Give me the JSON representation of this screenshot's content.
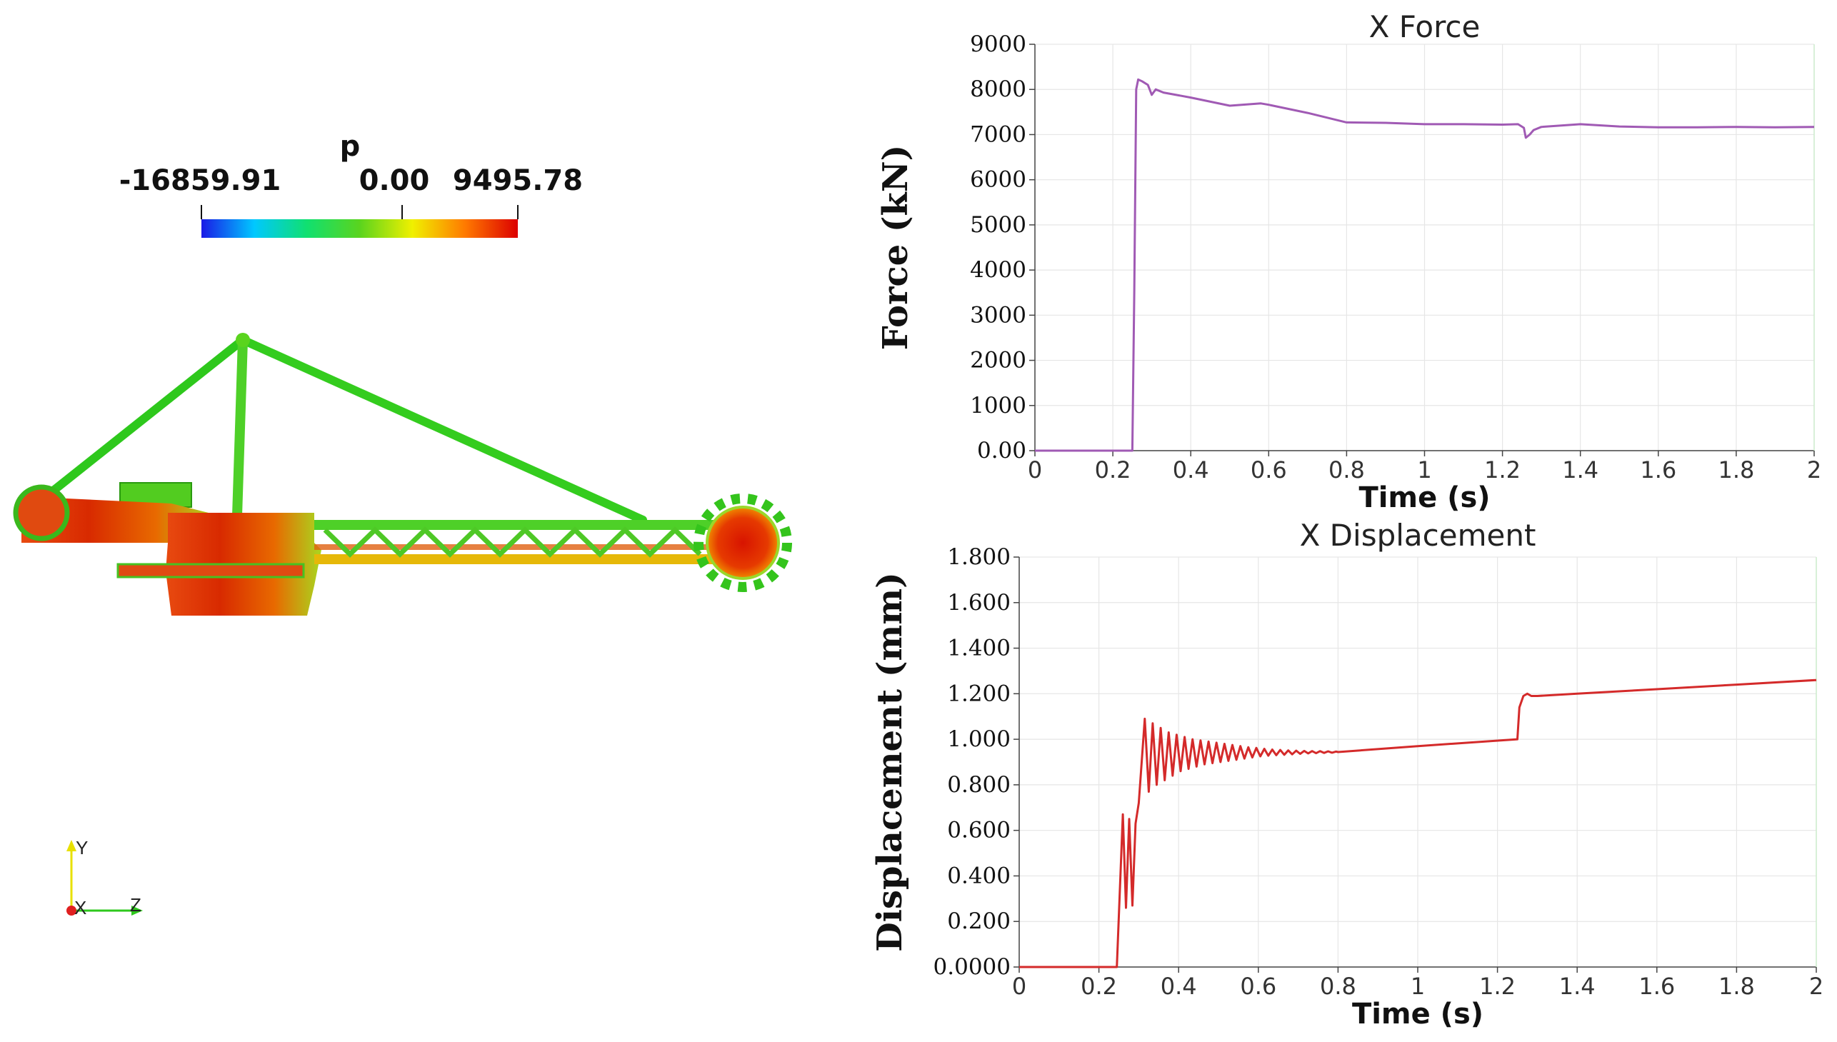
{
  "model_view": {
    "colorbar": {
      "title": "p",
      "min_label": "-16859.91",
      "mid_label": "0.00",
      "max_label": "9495.78",
      "colors": [
        "#1a1ae6",
        "#00c8ff",
        "#10e070",
        "#5ad41e",
        "#f0f000",
        "#ff7a00",
        "#dc0000"
      ]
    },
    "axes": {
      "y": "Y",
      "x": "X",
      "z": "Z"
    }
  },
  "chart_data": [
    {
      "type": "line",
      "title": "X Force",
      "xlabel": "Time (s)",
      "ylabel": "Force (kN)",
      "xlim": [
        0,
        2
      ],
      "ylim": [
        0,
        9000
      ],
      "x_ticks": [
        "0",
        "0.2",
        "0.4",
        "0.6",
        "0.8",
        "1",
        "1.2",
        "1.4",
        "1.6",
        "1.8",
        "2"
      ],
      "y_ticks": [
        "0.00",
        "1000",
        "2000",
        "3000",
        "4000",
        "5000",
        "6000",
        "7000",
        "8000",
        "9000"
      ],
      "y_tick_values": [
        0,
        1000,
        2000,
        3000,
        4000,
        5000,
        6000,
        7000,
        8000,
        9000
      ],
      "color": "#a05ab4",
      "series": [
        {
          "x": [
            0,
            0.245,
            0.25,
            0.255,
            0.26,
            0.265,
            0.275,
            0.29,
            0.3,
            0.31,
            0.33,
            0.4,
            0.5,
            0.58,
            0.6,
            0.7,
            0.8,
            0.9,
            1.0,
            1.1,
            1.2,
            1.24,
            1.255,
            1.26,
            1.27,
            1.28,
            1.3,
            1.4,
            1.5,
            1.6,
            1.7,
            1.8,
            1.9,
            2.0
          ],
          "y": [
            0,
            0,
            0,
            3500,
            8000,
            8220,
            8180,
            8100,
            7880,
            8000,
            7930,
            7820,
            7640,
            7690,
            7660,
            7480,
            7270,
            7260,
            7230,
            7230,
            7220,
            7230,
            7150,
            6930,
            7000,
            7100,
            7170,
            7230,
            7180,
            7160,
            7160,
            7170,
            7160,
            7170
          ]
        }
      ]
    },
    {
      "type": "line",
      "title": "X Displacement",
      "xlabel": "Time (s)",
      "ylabel": "Displacement (mm)",
      "xlim": [
        0,
        2
      ],
      "ylim": [
        0,
        1.8
      ],
      "x_ticks": [
        "0",
        "0.2",
        "0.4",
        "0.6",
        "0.8",
        "1",
        "1.2",
        "1.4",
        "1.6",
        "1.8",
        "2"
      ],
      "y_ticks": [
        "0.0000",
        "0.200",
        "0.400",
        "0.600",
        "0.800",
        "1.000",
        "1.200",
        "1.400",
        "1.600",
        "1.800"
      ],
      "y_tick_values": [
        0,
        0.2,
        0.4,
        0.6,
        0.8,
        1.0,
        1.2,
        1.4,
        1.6,
        1.8
      ],
      "color": "#d42a2a",
      "series": [
        {
          "x": [
            0,
            0.245,
            0.26,
            0.268,
            0.276,
            0.284,
            0.292,
            0.3,
            0.315,
            0.325,
            0.335,
            0.345,
            0.355,
            0.365,
            0.375,
            0.385,
            0.395,
            0.405,
            0.415,
            0.425,
            0.435,
            0.445,
            0.455,
            0.465,
            0.475,
            0.485,
            0.495,
            0.505,
            0.515,
            0.525,
            0.535,
            0.545,
            0.555,
            0.565,
            0.575,
            0.585,
            0.595,
            0.605,
            0.615,
            0.625,
            0.635,
            0.645,
            0.655,
            0.665,
            0.675,
            0.685,
            0.695,
            0.705,
            0.715,
            0.725,
            0.735,
            0.745,
            0.755,
            0.765,
            0.775,
            0.785,
            0.795,
            0.8,
            1.0,
            1.25,
            1.255,
            1.265,
            1.275,
            1.285,
            1.3,
            1.4,
            1.6,
            1.8,
            2.0
          ],
          "y": [
            0,
            0,
            0.67,
            0.26,
            0.65,
            0.27,
            0.63,
            0.72,
            1.09,
            0.77,
            1.07,
            0.8,
            1.05,
            0.82,
            1.03,
            0.84,
            1.02,
            0.86,
            1.01,
            0.87,
            1.0,
            0.88,
            0.995,
            0.89,
            0.99,
            0.895,
            0.985,
            0.9,
            0.98,
            0.905,
            0.975,
            0.91,
            0.97,
            0.915,
            0.965,
            0.92,
            0.962,
            0.925,
            0.958,
            0.928,
            0.955,
            0.93,
            0.953,
            0.932,
            0.951,
            0.934,
            0.95,
            0.936,
            0.949,
            0.938,
            0.948,
            0.939,
            0.948,
            0.94,
            0.947,
            0.941,
            0.946,
            0.944,
            0.97,
            1.0,
            1.14,
            1.19,
            1.2,
            1.19,
            1.19,
            1.2,
            1.22,
            1.24,
            1.26
          ]
        }
      ]
    }
  ]
}
